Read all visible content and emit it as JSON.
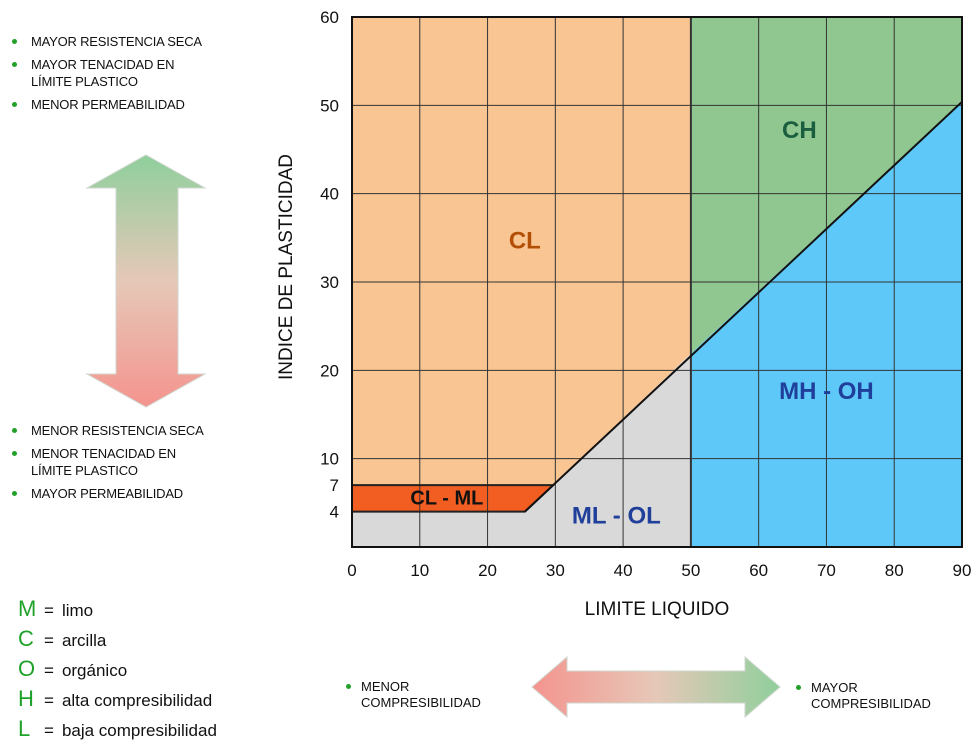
{
  "left_panel": {
    "top_items": [
      "MAYOR RESISTENCIA SECA",
      "MAYOR TENACIDAD EN\nLÍMITE PLASTICO",
      "MENOR PERMEABILIDAD"
    ],
    "bottom_items": [
      "MENOR RESISTENCIA SECA",
      "MENOR TENACIDAD EN\nLÍMITE PLASTICO",
      "MAYOR PERMEABILIDAD"
    ]
  },
  "legend": [
    {
      "letter": "M",
      "meaning": "limo"
    },
    {
      "letter": "C",
      "meaning": "arcilla"
    },
    {
      "letter": "O",
      "meaning": "orgánico"
    },
    {
      "letter": "H",
      "meaning": "alta compresibilidad"
    },
    {
      "letter": "L",
      "meaning": "baja compresibilidad"
    }
  ],
  "bottom_labels": {
    "left": "MENOR\nCOMPRESIBILIDAD",
    "right": "MAYOR\nCOMPRESIBILIDAD"
  },
  "colors": {
    "CL": "#f9c593",
    "CH": "#90c690",
    "MH-OH": "#5ec9f9",
    "ML-OL": "#d9d9d9",
    "CL-ML": "#f25e22",
    "CL_text": "#b24f06",
    "CH_text": "#1b5e3f",
    "MH_text": "#1f3f9a",
    "ML_text": "#1f3f9a",
    "bullet": "#22a02a",
    "arrow_green": "#8fcf9c",
    "arrow_red": "#f4948e"
  },
  "chart_data": {
    "type": "area",
    "title": "",
    "xlabel": "LIMITE LIQUIDO",
    "ylabel": "INDICE DE PLASTICIDAD",
    "xlim": [
      0,
      90
    ],
    "ylim": [
      0,
      60
    ],
    "x_ticks": [
      0,
      10,
      20,
      30,
      40,
      50,
      60,
      70,
      80,
      90
    ],
    "y_ticks": [
      4,
      7,
      10,
      20,
      30,
      40,
      50,
      60
    ],
    "grid": true,
    "a_line": {
      "x": [
        25.5,
        90
      ],
      "y": [
        4,
        50.4
      ]
    },
    "regions": [
      {
        "name": "CL",
        "label": "CL",
        "polygon": [
          [
            0,
            7
          ],
          [
            0,
            60
          ],
          [
            50,
            60
          ],
          [
            50,
            21.9
          ],
          [
            29.7,
            7
          ]
        ]
      },
      {
        "name": "CH",
        "label": "CH",
        "polygon": [
          [
            50,
            21.9
          ],
          [
            50,
            60
          ],
          [
            90,
            60
          ],
          [
            90,
            50.4
          ]
        ]
      },
      {
        "name": "MH-OH",
        "label": "MH - OH",
        "polygon": [
          [
            50,
            0
          ],
          [
            50,
            21.9
          ],
          [
            90,
            50.4
          ],
          [
            90,
            0
          ]
        ]
      },
      {
        "name": "ML-OL",
        "label": "ML - OL",
        "polygon": [
          [
            0,
            0
          ],
          [
            0,
            4
          ],
          [
            25.5,
            4
          ],
          [
            29.7,
            7
          ],
          [
            50,
            21.9
          ],
          [
            50,
            0
          ]
        ]
      },
      {
        "name": "CL-ML",
        "label": "CL - ML",
        "polygon": [
          [
            0,
            4
          ],
          [
            0,
            7
          ],
          [
            29.7,
            7
          ],
          [
            25.5,
            4
          ]
        ]
      }
    ],
    "label_positions": {
      "CL": [
        25.5,
        34.5
      ],
      "CH": [
        66,
        47
      ],
      "MH-OH": [
        70,
        17.5
      ],
      "ML-OL": [
        39,
        3.4
      ],
      "CL-ML": [
        14,
        5.4
      ]
    }
  }
}
